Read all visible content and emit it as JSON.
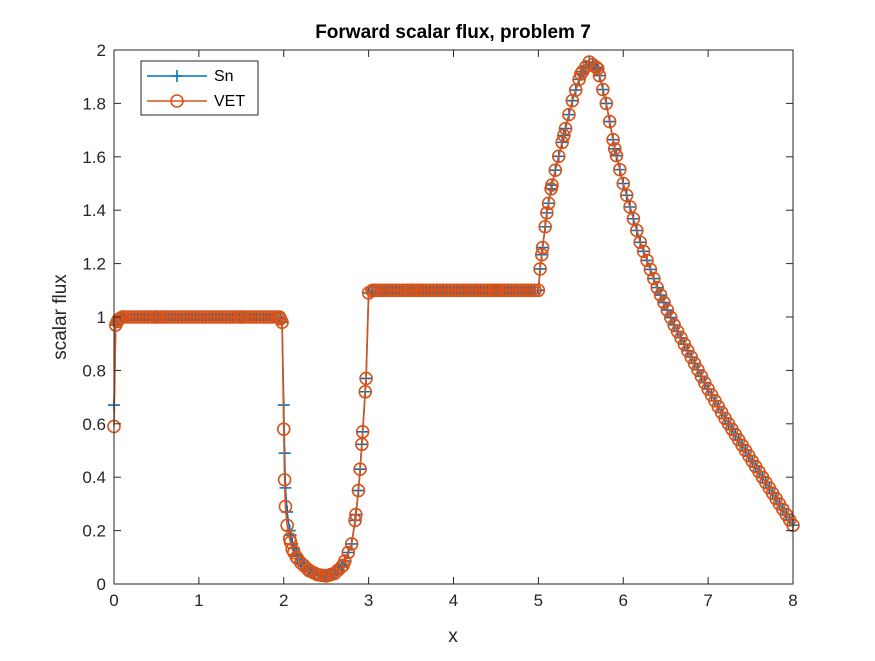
{
  "chart_data": {
    "type": "line",
    "title": "Forward scalar flux, problem 7",
    "xlabel": "x",
    "ylabel": "scalar flux",
    "xlim": [
      0,
      8
    ],
    "ylim": [
      0,
      2
    ],
    "xticks": [
      "0",
      "1",
      "2",
      "3",
      "4",
      "5",
      "6",
      "7",
      "8"
    ],
    "yticks": [
      "0",
      "0.2",
      "0.4",
      "0.6",
      "0.8",
      "1",
      "1.2",
      "1.4",
      "1.6",
      "1.8",
      "2"
    ],
    "grid": false,
    "legend_position": "top-left",
    "series": [
      {
        "name": "Sn",
        "color": "#0072BD",
        "marker": "plus",
        "points": [
          [
            0,
            0.67
          ],
          [
            0.02,
            0.97
          ],
          [
            0.05,
            0.99
          ],
          [
            0.1,
            1.0
          ],
          [
            0.5,
            1.0
          ],
          [
            1.0,
            1.0
          ],
          [
            1.5,
            1.0
          ],
          [
            1.95,
            1.0
          ],
          [
            1.98,
            0.98
          ],
          [
            2.0,
            0.67
          ],
          [
            2.01,
            0.49
          ],
          [
            2.02,
            0.36
          ],
          [
            2.04,
            0.27
          ],
          [
            2.07,
            0.2
          ],
          [
            2.1,
            0.15
          ],
          [
            2.15,
            0.11
          ],
          [
            2.2,
            0.08
          ],
          [
            2.3,
            0.05
          ],
          [
            2.4,
            0.035
          ],
          [
            2.5,
            0.03
          ],
          [
            2.6,
            0.04
          ],
          [
            2.7,
            0.07
          ],
          [
            2.8,
            0.15
          ],
          [
            2.85,
            0.26
          ],
          [
            2.88,
            0.35
          ],
          [
            2.9,
            0.43
          ],
          [
            2.93,
            0.57
          ],
          [
            2.97,
            0.77
          ],
          [
            3.0,
            1.09
          ],
          [
            3.05,
            1.1
          ],
          [
            3.5,
            1.1
          ],
          [
            4.0,
            1.1
          ],
          [
            4.5,
            1.1
          ],
          [
            5.0,
            1.1
          ],
          [
            5.02,
            1.18
          ],
          [
            5.05,
            1.26
          ],
          [
            5.1,
            1.39
          ],
          [
            5.15,
            1.48
          ],
          [
            5.2,
            1.55
          ],
          [
            5.3,
            1.68
          ],
          [
            5.4,
            1.81
          ],
          [
            5.5,
            1.91
          ],
          [
            5.6,
            1.955
          ],
          [
            5.7,
            1.93
          ],
          [
            5.8,
            1.8
          ],
          [
            5.9,
            1.63
          ],
          [
            6.0,
            1.5
          ],
          [
            6.2,
            1.28
          ],
          [
            6.4,
            1.11
          ],
          [
            6.6,
            0.97
          ],
          [
            6.8,
            0.85
          ],
          [
            7.0,
            0.73
          ],
          [
            7.2,
            0.62
          ],
          [
            7.4,
            0.52
          ],
          [
            7.6,
            0.42
          ],
          [
            7.8,
            0.32
          ],
          [
            8.0,
            0.22
          ]
        ]
      },
      {
        "name": "VET",
        "color": "#D95319",
        "marker": "circle",
        "points": [
          [
            0,
            0.59
          ],
          [
            0.02,
            0.97
          ],
          [
            0.05,
            0.99
          ],
          [
            0.1,
            1.0
          ],
          [
            0.5,
            1.0
          ],
          [
            1.0,
            1.0
          ],
          [
            1.5,
            1.0
          ],
          [
            1.95,
            1.0
          ],
          [
            1.98,
            0.98
          ],
          [
            2.0,
            0.58
          ],
          [
            2.01,
            0.39
          ],
          [
            2.02,
            0.29
          ],
          [
            2.04,
            0.22
          ],
          [
            2.07,
            0.17
          ],
          [
            2.1,
            0.13
          ],
          [
            2.15,
            0.1
          ],
          [
            2.2,
            0.08
          ],
          [
            2.3,
            0.05
          ],
          [
            2.4,
            0.035
          ],
          [
            2.5,
            0.03
          ],
          [
            2.6,
            0.04
          ],
          [
            2.7,
            0.07
          ],
          [
            2.8,
            0.15
          ],
          [
            2.85,
            0.26
          ],
          [
            2.88,
            0.35
          ],
          [
            2.9,
            0.43
          ],
          [
            2.93,
            0.57
          ],
          [
            2.97,
            0.77
          ],
          [
            3.0,
            1.09
          ],
          [
            3.05,
            1.1
          ],
          [
            3.5,
            1.1
          ],
          [
            4.0,
            1.1
          ],
          [
            4.5,
            1.1
          ],
          [
            5.0,
            1.1
          ],
          [
            5.02,
            1.18
          ],
          [
            5.05,
            1.26
          ],
          [
            5.1,
            1.39
          ],
          [
            5.15,
            1.48
          ],
          [
            5.2,
            1.55
          ],
          [
            5.3,
            1.68
          ],
          [
            5.4,
            1.81
          ],
          [
            5.5,
            1.91
          ],
          [
            5.6,
            1.955
          ],
          [
            5.7,
            1.93
          ],
          [
            5.8,
            1.8
          ],
          [
            5.9,
            1.63
          ],
          [
            6.0,
            1.5
          ],
          [
            6.2,
            1.28
          ],
          [
            6.4,
            1.11
          ],
          [
            6.6,
            0.97
          ],
          [
            6.8,
            0.85
          ],
          [
            7.0,
            0.73
          ],
          [
            7.2,
            0.62
          ],
          [
            7.4,
            0.52
          ],
          [
            7.6,
            0.42
          ],
          [
            7.8,
            0.32
          ],
          [
            8.0,
            0.22
          ]
        ]
      }
    ]
  }
}
